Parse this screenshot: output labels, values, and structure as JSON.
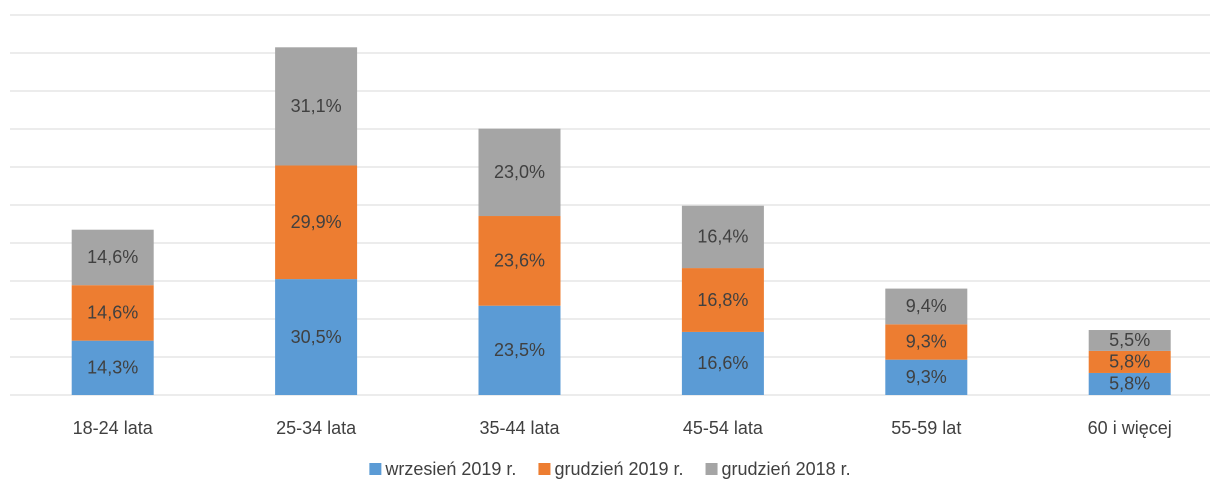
{
  "chart_data": {
    "type": "stacked_bar",
    "categories": [
      "18-24 lata",
      "25-34 lata",
      "35-44 lata",
      "45-54 lata",
      "55-59 lat",
      "60 i więcej"
    ],
    "series": [
      {
        "name": "wrzesień 2019 r.",
        "color": "#5b9bd5",
        "values": [
          14.3,
          30.5,
          23.5,
          16.6,
          9.3,
          5.8
        ],
        "value_labels": [
          "14,3%",
          "30,5%",
          "23,5%",
          "16,6%",
          "9,3%",
          "5,8%"
        ]
      },
      {
        "name": "grudzień 2019 r.",
        "color": "#ed7d31",
        "values": [
          14.6,
          29.9,
          23.6,
          16.8,
          9.3,
          5.8
        ],
        "value_labels": [
          "14,6%",
          "29,9%",
          "23,6%",
          "16,8%",
          "9,3%",
          "5,8%"
        ]
      },
      {
        "name": "grudzień 2018 r.",
        "color": "#a5a5a5",
        "values": [
          14.6,
          31.1,
          23.0,
          16.4,
          9.4,
          5.5
        ],
        "value_labels": [
          "14,6%",
          "31,1%",
          "23,0%",
          "16,4%",
          "9,4%",
          "5,5%"
        ]
      }
    ],
    "ylim": [
      0,
      100
    ],
    "yticks": [
      0,
      10,
      20,
      30,
      40,
      50,
      60,
      70,
      80,
      90,
      100
    ],
    "grid": true,
    "legend": "bottom"
  }
}
